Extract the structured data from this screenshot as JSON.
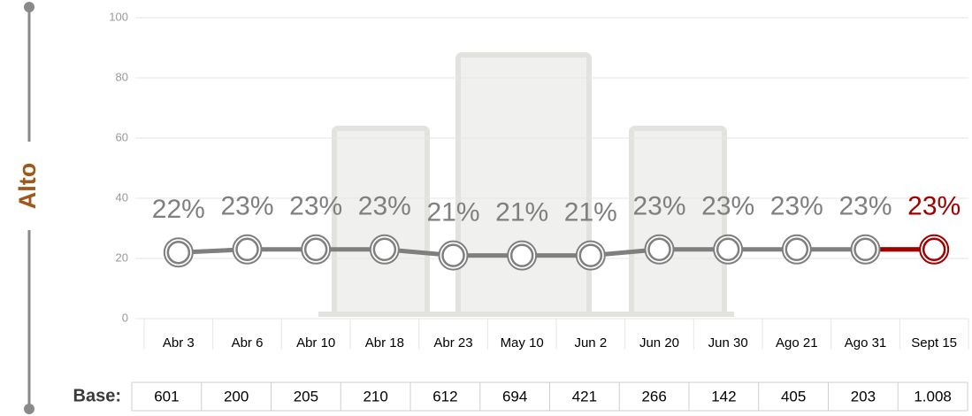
{
  "chart_data": {
    "type": "line",
    "y_label": "Alto",
    "categories": [
      "Abr 3",
      "Abr 6",
      "Abr 10",
      "Abr 18",
      "Abr 23",
      "May 10",
      "Jun 2",
      "Jun 20",
      "Jun 30",
      "Ago 21",
      "Ago 31",
      "Sept 15"
    ],
    "values": [
      22,
      23,
      23,
      23,
      21,
      21,
      21,
      23,
      23,
      23,
      23,
      23
    ],
    "value_labels": [
      "22%",
      "23%",
      "23%",
      "23%",
      "21%",
      "21%",
      "21%",
      "23%",
      "23%",
      "23%",
      "23%",
      "23%"
    ],
    "color": "#7f7f7f",
    "highlight_color": "#a00000",
    "ylim": [
      0,
      100
    ],
    "yticks": [
      0,
      20,
      40,
      60,
      80,
      100
    ],
    "grid": true
  },
  "base": {
    "label": "Base:",
    "values": [
      "601",
      "200",
      "205",
      "210",
      "612",
      "694",
      "421",
      "266",
      "142",
      "405",
      "203",
      "1.008"
    ]
  }
}
